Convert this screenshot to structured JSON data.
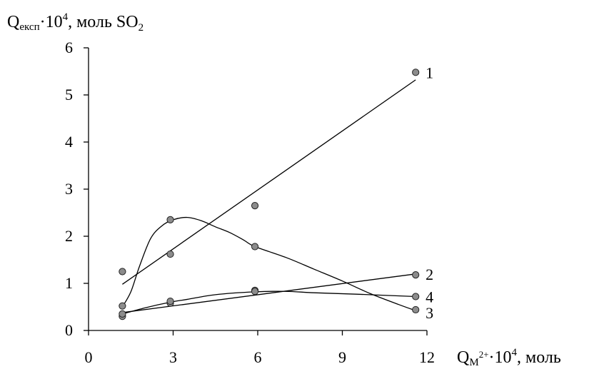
{
  "chart_data": {
    "type": "scatter",
    "ylabel": {
      "main": "Q",
      "sub": "експ",
      "dot": "·10",
      "sup": "4",
      "rest": ", моль SO",
      "sub2": "2"
    },
    "xlabel": {
      "main": "Q",
      "sub": "M",
      "sub_sup": "2+",
      "dot": "·10",
      "sup": "4",
      "rest": ", моль"
    },
    "xlim": [
      0,
      12
    ],
    "ylim": [
      0,
      6
    ],
    "x_ticks": [
      0,
      3,
      6,
      9,
      12
    ],
    "x_tick_labels": [
      "0",
      "3",
      "6",
      "9",
      "12"
    ],
    "y_ticks": [
      0,
      1,
      2,
      3,
      4,
      5,
      6
    ],
    "y_tick_labels": [
      "0",
      "1",
      "2",
      "3",
      "4",
      "5",
      "6"
    ],
    "grid": false,
    "legend": "none",
    "marker_color": "#8c8c8c",
    "series": [
      {
        "label": "1",
        "points": [
          [
            1.2,
            1.25
          ],
          [
            2.9,
            1.62
          ],
          [
            5.9,
            2.65
          ],
          [
            11.6,
            5.48
          ]
        ],
        "fit": [
          [
            1.2,
            0.98
          ],
          [
            11.6,
            5.32
          ]
        ]
      },
      {
        "label": "2",
        "points": [
          [
            1.2,
            0.3
          ],
          [
            2.9,
            0.58
          ],
          [
            5.9,
            0.85
          ],
          [
            11.6,
            1.18
          ]
        ],
        "fit": [
          [
            1.2,
            0.38
          ],
          [
            11.6,
            1.2
          ]
        ]
      },
      {
        "label": "3",
        "points": [
          [
            1.2,
            0.52
          ],
          [
            2.9,
            2.35
          ],
          [
            5.9,
            1.78
          ],
          [
            11.6,
            0.44
          ]
        ],
        "fit": [
          [
            1.2,
            0.5
          ],
          [
            1.5,
            0.82
          ],
          [
            1.8,
            1.35
          ],
          [
            2.2,
            1.95
          ],
          [
            2.6,
            2.22
          ],
          [
            3.0,
            2.35
          ],
          [
            3.5,
            2.4
          ],
          [
            4.0,
            2.33
          ],
          [
            4.5,
            2.2
          ],
          [
            5.0,
            2.08
          ],
          [
            5.5,
            1.92
          ],
          [
            5.9,
            1.78
          ],
          [
            7.0,
            1.55
          ],
          [
            8.0,
            1.3
          ],
          [
            9.0,
            1.05
          ],
          [
            10.0,
            0.78
          ],
          [
            11.0,
            0.55
          ],
          [
            11.6,
            0.42
          ]
        ]
      },
      {
        "label": "4",
        "points": [
          [
            1.2,
            0.35
          ],
          [
            2.9,
            0.62
          ],
          [
            5.9,
            0.83
          ],
          [
            11.6,
            0.72
          ]
        ],
        "fit": [
          [
            1.2,
            0.35
          ],
          [
            2.0,
            0.48
          ],
          [
            2.9,
            0.6
          ],
          [
            3.5,
            0.66
          ],
          [
            4.5,
            0.76
          ],
          [
            5.9,
            0.82
          ],
          [
            7.0,
            0.83
          ],
          [
            8.0,
            0.8
          ],
          [
            9.5,
            0.77
          ],
          [
            11.6,
            0.72
          ]
        ]
      }
    ]
  }
}
